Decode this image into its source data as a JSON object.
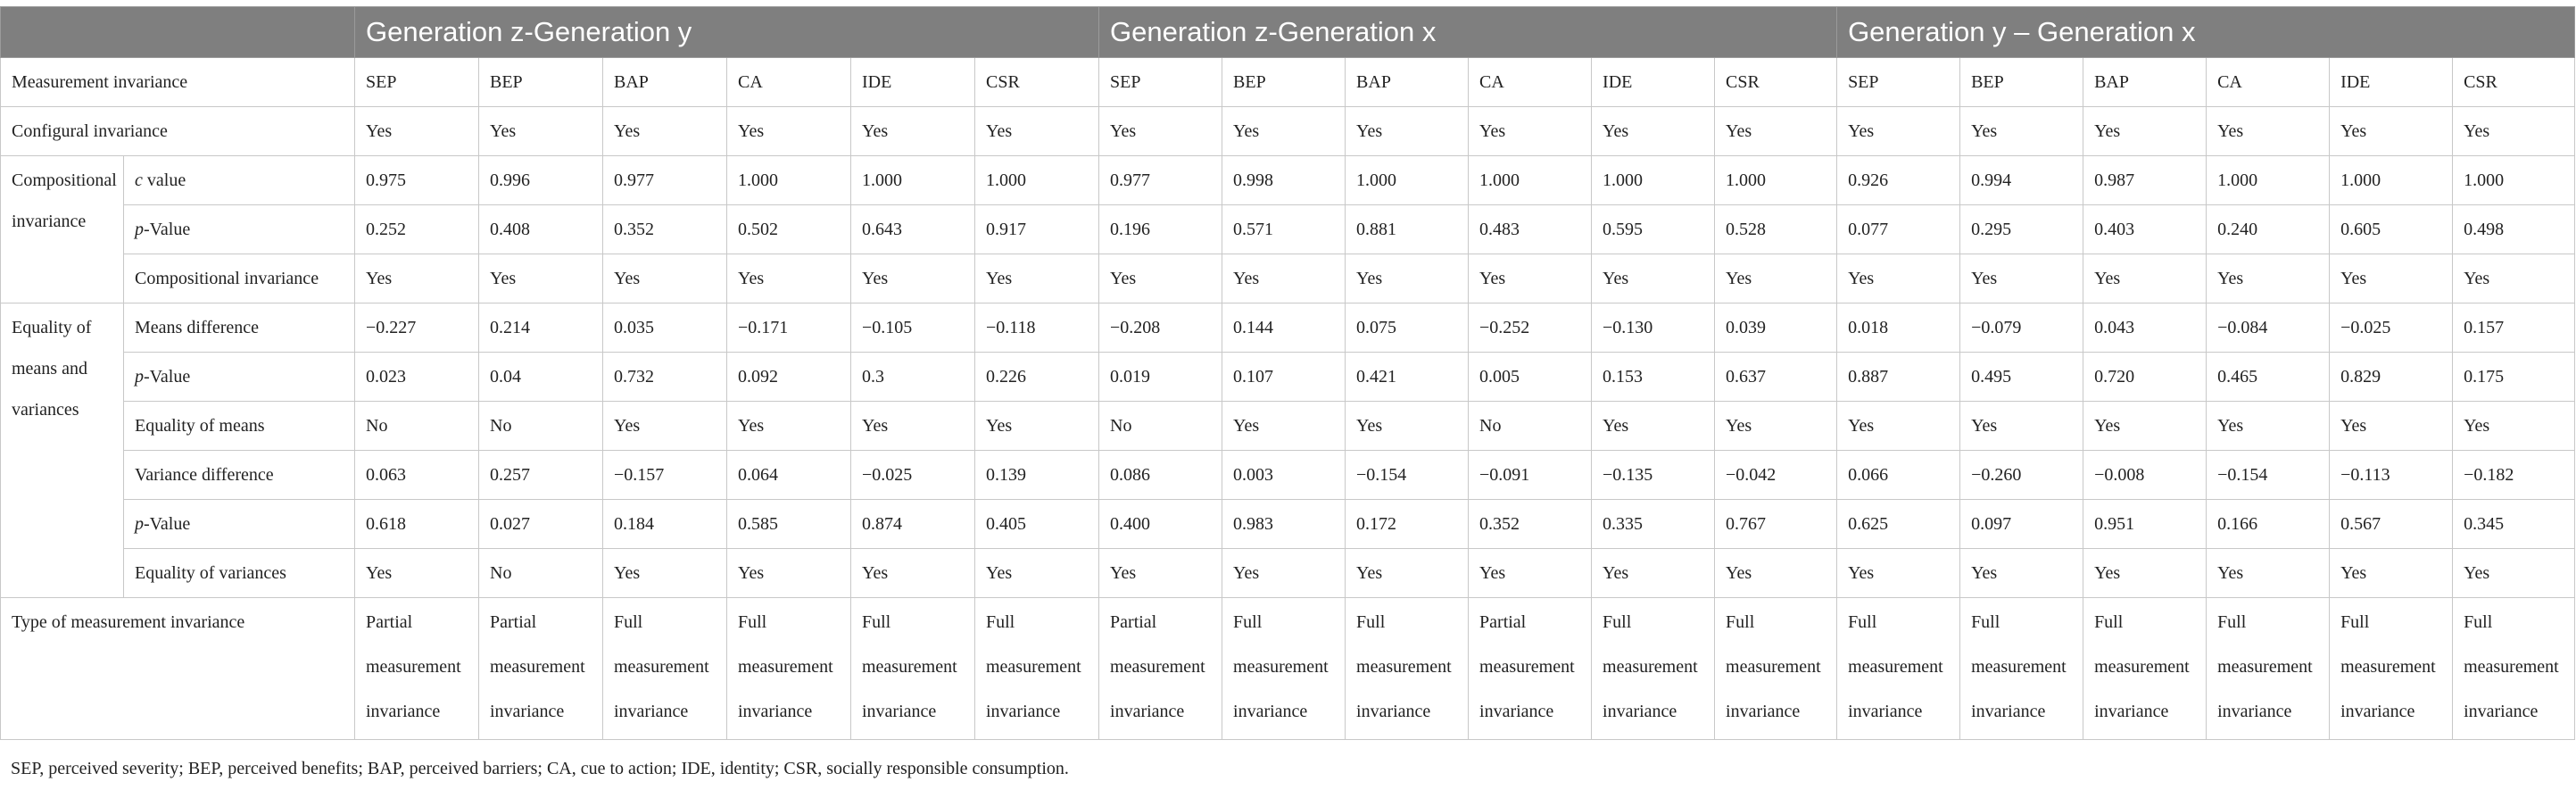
{
  "header": {
    "groups": [
      "Generation z-Generation y",
      "Generation z-Generation x",
      "Generation y – Generation x"
    ]
  },
  "measurement_row": {
    "label": "Measurement invariance",
    "cols": [
      "SEP",
      "BEP",
      "BAP",
      "CA",
      "IDE",
      "CSR",
      "SEP",
      "BEP",
      "BAP",
      "CA",
      "IDE",
      "CSR",
      "SEP",
      "BEP",
      "BAP",
      "CA",
      "IDE",
      "CSR"
    ]
  },
  "configural": {
    "label": "Configural invariance",
    "values": [
      "Yes",
      "Yes",
      "Yes",
      "Yes",
      "Yes",
      "Yes",
      "Yes",
      "Yes",
      "Yes",
      "Yes",
      "Yes",
      "Yes",
      "Yes",
      "Yes",
      "Yes",
      "Yes",
      "Yes",
      "Yes"
    ]
  },
  "compositional": {
    "group_label": "Compositional invariance",
    "rows": [
      {
        "label_italic": "c",
        "label_rest": " value",
        "values": [
          "0.975",
          "0.996",
          "0.977",
          "1.000",
          "1.000",
          "1.000",
          "0.977",
          "0.998",
          "1.000",
          "1.000",
          "1.000",
          "1.000",
          "0.926",
          "0.994",
          "0.987",
          "1.000",
          "1.000",
          "1.000"
        ]
      },
      {
        "label_italic": "p",
        "label_rest": "-Value",
        "values": [
          "0.252",
          "0.408",
          "0.352",
          "0.502",
          "0.643",
          "0.917",
          "0.196",
          "0.571",
          "0.881",
          "0.483",
          "0.595",
          "0.528",
          "0.077",
          "0.295",
          "0.403",
          "0.240",
          "0.605",
          "0.498"
        ]
      },
      {
        "label_italic": "",
        "label_rest": "Compositional invariance",
        "values": [
          "Yes",
          "Yes",
          "Yes",
          "Yes",
          "Yes",
          "Yes",
          "Yes",
          "Yes",
          "Yes",
          "Yes",
          "Yes",
          "Yes",
          "Yes",
          "Yes",
          "Yes",
          "Yes",
          "Yes",
          "Yes"
        ]
      }
    ]
  },
  "equality": {
    "group_label": "Equality of means and variances",
    "rows": [
      {
        "label_italic": "",
        "label_rest": "Means difference",
        "values": [
          "−0.227",
          "0.214",
          "0.035",
          "−0.171",
          "−0.105",
          "−0.118",
          "−0.208",
          "0.144",
          "0.075",
          "−0.252",
          "−0.130",
          "0.039",
          "0.018",
          "−0.079",
          "0.043",
          "−0.084",
          "−0.025",
          "0.157"
        ]
      },
      {
        "label_italic": "p",
        "label_rest": "-Value",
        "values": [
          "0.023",
          "0.04",
          "0.732",
          "0.092",
          "0.3",
          "0.226",
          "0.019",
          "0.107",
          "0.421",
          "0.005",
          "0.153",
          "0.637",
          "0.887",
          "0.495",
          "0.720",
          "0.465",
          "0.829",
          "0.175"
        ]
      },
      {
        "label_italic": "",
        "label_rest": "Equality of means",
        "values": [
          "No",
          "No",
          "Yes",
          "Yes",
          "Yes",
          "Yes",
          "No",
          "Yes",
          "Yes",
          "No",
          "Yes",
          "Yes",
          "Yes",
          "Yes",
          "Yes",
          "Yes",
          "Yes",
          "Yes"
        ]
      },
      {
        "label_italic": "",
        "label_rest": "Variance difference",
        "values": [
          "0.063",
          "0.257",
          "−0.157",
          "0.064",
          "−0.025",
          "0.139",
          "0.086",
          "0.003",
          "−0.154",
          "−0.091",
          "−0.135",
          "−0.042",
          "0.066",
          "−0.260",
          "−0.008",
          "−0.154",
          "−0.113",
          "−0.182"
        ]
      },
      {
        "label_italic": "p",
        "label_rest": "-Value",
        "values": [
          "0.618",
          "0.027",
          "0.184",
          "0.585",
          "0.874",
          "0.405",
          "0.400",
          "0.983",
          "0.172",
          "0.352",
          "0.335",
          "0.767",
          "0.625",
          "0.097",
          "0.951",
          "0.166",
          "0.567",
          "0.345"
        ]
      },
      {
        "label_italic": "",
        "label_rest": "Equality of variances",
        "values": [
          "Yes",
          "No",
          "Yes",
          "Yes",
          "Yes",
          "Yes",
          "Yes",
          "Yes",
          "Yes",
          "Yes",
          "Yes",
          "Yes",
          "Yes",
          "Yes",
          "Yes",
          "Yes",
          "Yes",
          "Yes"
        ]
      }
    ]
  },
  "type_row": {
    "label": "Type of measurement invariance",
    "values": [
      [
        "Partial",
        "measurement",
        "invariance"
      ],
      [
        "Partial",
        "measurement",
        "invariance"
      ],
      [
        "Full",
        "measurement",
        "invariance"
      ],
      [
        "Full",
        "measurement",
        "invariance"
      ],
      [
        "Full",
        "measurement",
        "invariance"
      ],
      [
        "Full",
        "measurement",
        "invariance"
      ],
      [
        "Partial",
        "measurement",
        "invariance"
      ],
      [
        "Full",
        "measurement",
        "invariance"
      ],
      [
        "Full",
        "measurement",
        "invariance"
      ],
      [
        "Partial",
        "measurement",
        "invariance"
      ],
      [
        "Full",
        "measurement",
        "invariance"
      ],
      [
        "Full",
        "measurement",
        "invariance"
      ],
      [
        "Full",
        "measurement",
        "invariance"
      ],
      [
        "Full",
        "measurement",
        "invariance"
      ],
      [
        "Full",
        "measurement",
        "invariance"
      ],
      [
        "Full",
        "measurement",
        "invariance"
      ],
      [
        "Full",
        "measurement",
        "invariance"
      ],
      [
        "Full",
        "measurement",
        "invariance"
      ]
    ]
  },
  "footnote": "SEP, perceived severity; BEP, perceived benefits; BAP, perceived barriers; CA, cue to action; IDE, identity; CSR, socially responsible consumption.",
  "colors": {
    "header_bg": "#7f7f7f",
    "header_text": "#ffffff",
    "grid": "#c8c8c8",
    "text": "#222222"
  }
}
